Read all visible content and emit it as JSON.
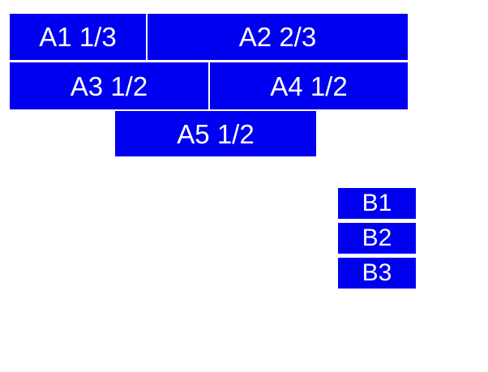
{
  "figure": {
    "background_color": "#ffffff",
    "box_fill_color": "#0000f0",
    "box_text_color": "#ffffff"
  },
  "boxes": [
    {
      "id": "A1",
      "label": "A1 1/3"
    },
    {
      "id": "A2",
      "label": "A2 2/3"
    },
    {
      "id": "A3",
      "label": "A3 1/2"
    },
    {
      "id": "A4",
      "label": "A4 1/2"
    },
    {
      "id": "A5",
      "label": "A5 1/2"
    },
    {
      "id": "B1",
      "label": "B1"
    },
    {
      "id": "B2",
      "label": "B2"
    },
    {
      "id": "B3",
      "label": "B3"
    }
  ]
}
